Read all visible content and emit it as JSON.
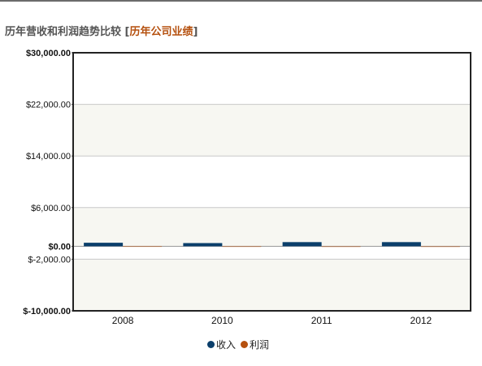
{
  "header": {
    "title": "历年营收和利润趋势比较",
    "bracket_open": "[",
    "link_label": "历年公司业绩",
    "bracket_close": "]"
  },
  "chart_data": {
    "type": "bar",
    "categories": [
      "2008",
      "2010",
      "2011",
      "2012"
    ],
    "series": [
      {
        "name": "收入",
        "color": "#0b3f6b",
        "values": [
          550,
          500,
          650,
          650
        ]
      },
      {
        "name": "利润",
        "color": "#b5500e",
        "values": [
          40,
          30,
          20,
          20
        ]
      }
    ],
    "y_ticks": [
      {
        "value": 30000,
        "label": "$30,000.00"
      },
      {
        "value": 22000,
        "label": "$22,000.00"
      },
      {
        "value": 14000,
        "label": "$14,000.00"
      },
      {
        "value": 6000,
        "label": "$6,000.00"
      },
      {
        "value": 0,
        "label": "$0.00"
      },
      {
        "value": -2000,
        "label": "$-2,000.00"
      },
      {
        "value": -10000,
        "label": "$-10,000.00"
      }
    ],
    "ylim": [
      -10000,
      30000
    ],
    "grid": true,
    "legend_position": "bottom-center"
  }
}
